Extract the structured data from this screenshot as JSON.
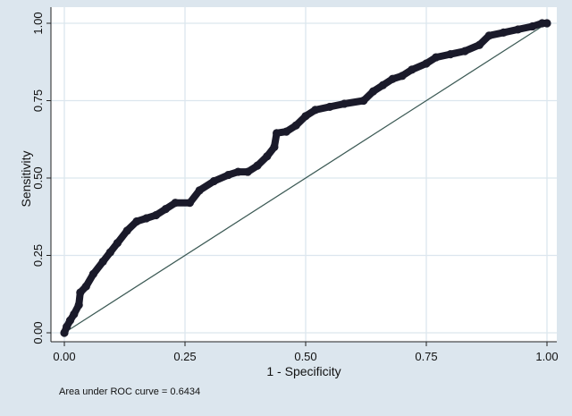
{
  "chart_data": {
    "type": "line",
    "xlabel": "1 - Specificity",
    "ylabel": "Sensitivity",
    "xlim": [
      0,
      1
    ],
    "ylim": [
      0,
      1
    ],
    "x_ticks": [
      "0.00",
      "0.25",
      "0.50",
      "0.75",
      "1.00"
    ],
    "y_ticks": [
      "0.00",
      "0.25",
      "0.50",
      "0.75",
      "1.00"
    ],
    "tick_values": [
      0,
      0.25,
      0.5,
      0.75,
      1
    ],
    "grid": true,
    "colors": {
      "background": "#dce6ee",
      "plot_area": "#ffffff",
      "curve": "#1a1a2a",
      "reference": "#3c5a55"
    },
    "note": "Area under ROC curve = 0.6434",
    "series": [
      {
        "points": [
          [
            0.0,
            0.0
          ],
          [
            0.005,
            0.02
          ],
          [
            0.012,
            0.04
          ],
          [
            0.02,
            0.06
          ],
          [
            0.03,
            0.09
          ],
          [
            0.033,
            0.13
          ],
          [
            0.045,
            0.15
          ],
          [
            0.06,
            0.19
          ],
          [
            0.08,
            0.23
          ],
          [
            0.095,
            0.26
          ],
          [
            0.11,
            0.29
          ],
          [
            0.13,
            0.33
          ],
          [
            0.15,
            0.36
          ],
          [
            0.17,
            0.37
          ],
          [
            0.19,
            0.38
          ],
          [
            0.21,
            0.4
          ],
          [
            0.23,
            0.42
          ],
          [
            0.26,
            0.42
          ],
          [
            0.28,
            0.46
          ],
          [
            0.31,
            0.49
          ],
          [
            0.34,
            0.51
          ],
          [
            0.36,
            0.52
          ],
          [
            0.38,
            0.52
          ],
          [
            0.4,
            0.54
          ],
          [
            0.42,
            0.57
          ],
          [
            0.435,
            0.6
          ],
          [
            0.44,
            0.645
          ],
          [
            0.46,
            0.65
          ],
          [
            0.48,
            0.67
          ],
          [
            0.5,
            0.7
          ],
          [
            0.52,
            0.72
          ],
          [
            0.55,
            0.73
          ],
          [
            0.58,
            0.74
          ],
          [
            0.62,
            0.75
          ],
          [
            0.64,
            0.78
          ],
          [
            0.66,
            0.8
          ],
          [
            0.68,
            0.82
          ],
          [
            0.7,
            0.83
          ],
          [
            0.72,
            0.85
          ],
          [
            0.75,
            0.87
          ],
          [
            0.77,
            0.89
          ],
          [
            0.8,
            0.9
          ],
          [
            0.83,
            0.91
          ],
          [
            0.86,
            0.93
          ],
          [
            0.88,
            0.96
          ],
          [
            0.91,
            0.97
          ],
          [
            0.94,
            0.98
          ],
          [
            0.97,
            0.99
          ],
          [
            0.99,
            1.0
          ],
          [
            1.0,
            1.0
          ]
        ]
      },
      {
        "points": [
          [
            0,
            0
          ],
          [
            1,
            1
          ]
        ]
      }
    ]
  }
}
